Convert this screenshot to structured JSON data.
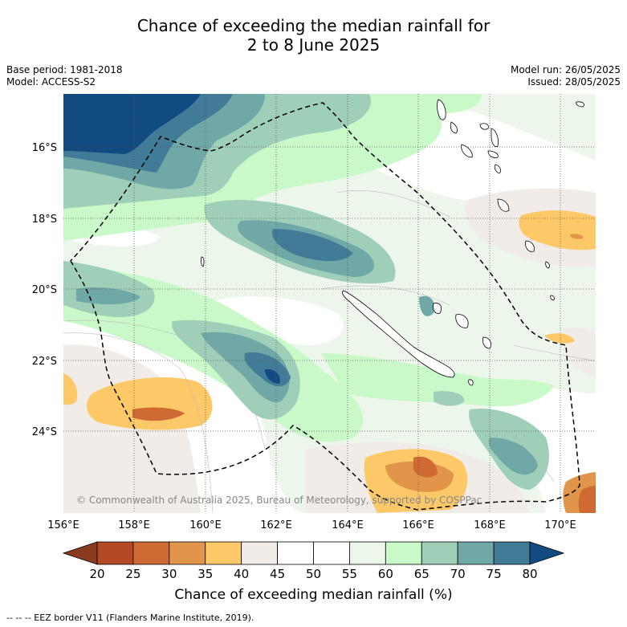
{
  "title": {
    "line1": "Chance of exceeding the median rainfall for",
    "line2": "2 to 8 June 2025"
  },
  "meta_left": {
    "base_period": "Base period: 1981-2018",
    "model": "Model: ACCESS-S2"
  },
  "meta_right": {
    "model_run": "Model run: 26/05/2025",
    "issued": "Issued: 28/05/2025"
  },
  "map": {
    "lat_labels": [
      "16°S",
      "18°S",
      "20°S",
      "22°S",
      "24°S"
    ],
    "lon_labels": [
      "156°E",
      "158°E",
      "160°E",
      "162°E",
      "164°E",
      "166°E",
      "168°E",
      "170°E"
    ],
    "copyright": "© Commonwealth of Australia 2025, Bureau of Meteorology, supported by COSPPac",
    "colors": {
      "low_3": "#8a3a1f",
      "low_2": "#b34a24",
      "low_1": "#cf6a34",
      "low_0": "#e0954a",
      "below": "#fdc867",
      "slight_below": "#f2ece8",
      "neutral": "#ffffff",
      "slight_above": "#edf6ea",
      "above_1": "#c9f9c8",
      "above_2": "#9fcfb8",
      "above_3": "#6fa8a6",
      "above_4": "#427b98",
      "above_5": "#124a82"
    }
  },
  "colorbar": {
    "ticks": [
      "20",
      "25",
      "30",
      "35",
      "40",
      "45",
      "50",
      "55",
      "60",
      "65",
      "70",
      "75",
      "80"
    ],
    "colors": [
      "#b34a24",
      "#cf6a34",
      "#e0954a",
      "#fdc867",
      "#f2ece8",
      "#ffffff",
      "#ffffff",
      "#edf6ea",
      "#c9f9c8",
      "#9fcfb8",
      "#6fa8a6",
      "#427b98"
    ],
    "low_extend_color": "#8a3a1f",
    "high_extend_color": "#124a82",
    "label": "Chance of exceeding median rainfall (%)"
  },
  "footer": "--  --  -- EEZ border V11 (Flanders Marine Institute, 2019)."
}
